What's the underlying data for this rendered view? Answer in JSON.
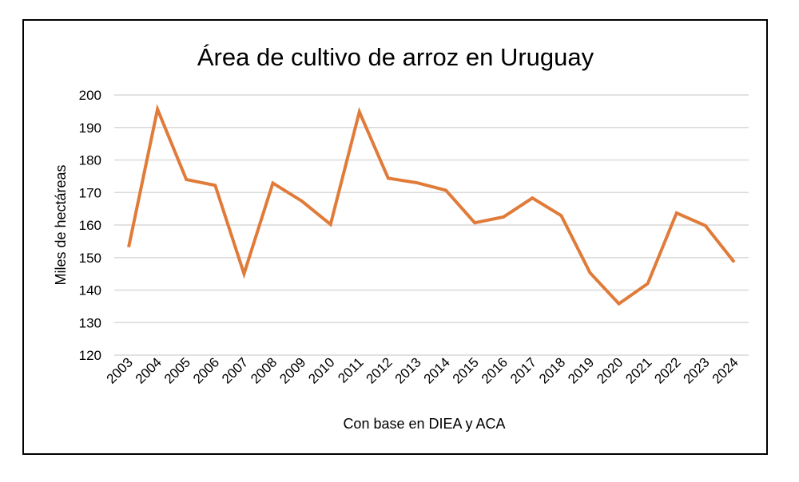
{
  "chart_data": {
    "type": "line",
    "title": "Área de cultivo de arroz en Uruguay",
    "xlabel": "Con base en DIEA y ACA",
    "ylabel": "Miles de hectáreas",
    "categories": [
      "2003",
      "2004",
      "2005",
      "2006",
      "2007",
      "2008",
      "2009",
      "2010",
      "2011",
      "2012",
      "2013",
      "2014",
      "2015",
      "2016",
      "2017",
      "2018",
      "2019",
      "2020",
      "2021",
      "2022",
      "2023",
      "2024"
    ],
    "values": [
      153.2,
      195.6,
      174.0,
      172.2,
      145.0,
      172.9,
      167.4,
      160.2,
      194.8,
      174.4,
      173.0,
      170.7,
      160.7,
      162.5,
      168.3,
      162.9,
      145.3,
      135.8,
      142.0,
      163.7,
      159.8,
      148.6
    ],
    "ylim": [
      120,
      200
    ],
    "yticks": [
      120,
      130,
      140,
      150,
      160,
      170,
      180,
      190,
      200
    ],
    "grid": true,
    "legend": "none",
    "line_color": "#E07B39",
    "grid_color": "#D9D9D9"
  }
}
